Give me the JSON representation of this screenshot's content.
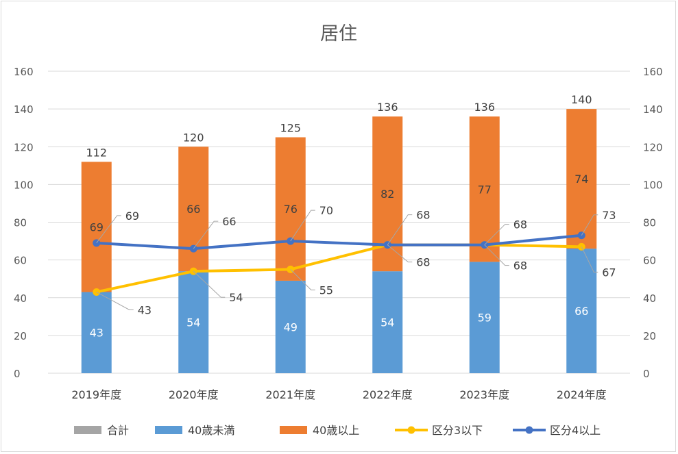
{
  "chart_data": {
    "type": "bar",
    "title": "居住",
    "categories": [
      "2019年度",
      "2020年度",
      "2021年度",
      "2022年度",
      "2023年度",
      "2024年度"
    ],
    "series": [
      {
        "name": "合計",
        "chart_type": "bar",
        "values": [
          112,
          120,
          125,
          136,
          136,
          140
        ],
        "color": "#a5a5a5"
      },
      {
        "name": "40歳未満",
        "chart_type": "stacked-bar",
        "values": [
          43,
          54,
          49,
          54,
          59,
          66
        ],
        "color": "#5b9bd5"
      },
      {
        "name": "40歳以上",
        "chart_type": "stacked-bar",
        "values": [
          69,
          66,
          76,
          82,
          77,
          74
        ],
        "color": "#ed7d31"
      },
      {
        "name": "区分3以下",
        "chart_type": "line",
        "axis": "secondary",
        "values": [
          43,
          54,
          55,
          68,
          68,
          67
        ],
        "color": "#ffc000"
      },
      {
        "name": "区分4以上",
        "chart_type": "line",
        "axis": "secondary",
        "values": [
          69,
          66,
          70,
          68,
          68,
          73
        ],
        "color": "#4472c4"
      }
    ],
    "y_left": {
      "min": 0,
      "max": 160,
      "step": 20,
      "ticks": [
        "0",
        "20",
        "40",
        "60",
        "80",
        "100",
        "120",
        "140",
        "160"
      ]
    },
    "y_right": {
      "min": 0,
      "max": 160,
      "step": 20,
      "ticks": [
        "0",
        "20",
        "40",
        "60",
        "80",
        "100",
        "120",
        "140",
        "160"
      ]
    },
    "grid": true,
    "legend_position": "bottom"
  }
}
